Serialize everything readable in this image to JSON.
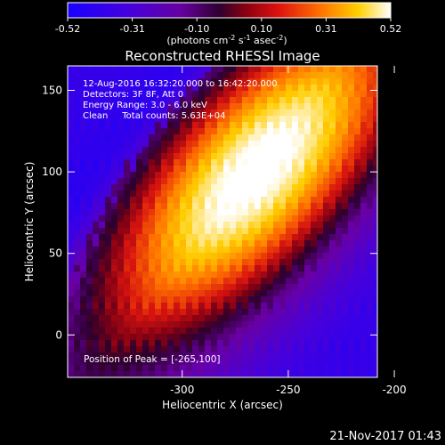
{
  "chart_data": {
    "type": "heatmap",
    "colorbar": {
      "ticks": [
        "-0.52",
        "-0.31",
        "-0.10",
        "0.10",
        "0.31",
        "0.52"
      ],
      "label_main": "(photons cm",
      "label_sup1": "-2",
      "label_mid": " s",
      "label_sup2": "-1",
      "label_tail": " asec",
      "label_sup3": "-2",
      "label_close": ")",
      "range": [
        -0.52,
        0.52
      ]
    },
    "title": "Reconstructed RHESSI Image",
    "annotations": [
      "12-Aug-2016 16:32:20.000 to 16:42:20.000",
      "Detectors: 3F 8F, Att 0",
      "Energy Range: 3.0 - 6.0 keV",
      "Clean     Total counts: 5.63E+04"
    ],
    "peak_label": "Position of Peak = [-265,100]",
    "peak": {
      "x": -265,
      "y": 100
    },
    "xlabel": "Heliocentric X (arcsec)",
    "ylabel": "Heliocentric Y (arcsec)",
    "x_ticks": [
      {
        "label": "-300",
        "value": -300
      },
      {
        "label": "-250",
        "value": -250
      },
      {
        "label": "-200",
        "value": -200
      }
    ],
    "y_ticks": [
      {
        "label": "0",
        "value": 0
      },
      {
        "label": "50",
        "value": 50
      },
      {
        "label": "100",
        "value": 100
      },
      {
        "label": "150",
        "value": 150
      }
    ],
    "xlim": [
      -354,
      -208
    ],
    "ylim": [
      -26,
      165
    ],
    "colors": {
      "colormap": [
        "#1800ff",
        "#6a00b0",
        "#330033",
        "#c01010",
        "#ff6000",
        "#ffd000",
        "#ffffff"
      ]
    }
  },
  "footer": {
    "date": "21-Nov-2017 01:43"
  }
}
